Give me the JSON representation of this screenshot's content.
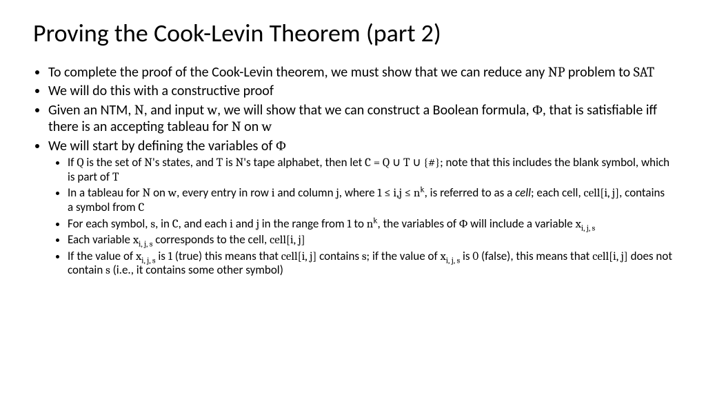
{
  "background_color": "#ffffff",
  "text_color": "#000000",
  "title_fontsize": 36,
  "body_fontsize": 20,
  "sub_fontsize": 17,
  "font_family": "Calibri",
  "math_font_family": "Cambria",
  "title": "Proving the Cook-Levin Theorem (part 2)",
  "bullets": [
    {
      "html": "To complete the proof of the Cook-Levin theorem, we must show that we can reduce any <span class='rm'>NP</span> problem to <span class='rm'>SAT</span>"
    },
    {
      "html": "We will do this with a constructive proof"
    },
    {
      "html": "Given an NTM, <span class='rm'>N</span>, and input <span class='rm'>w</span>, we will show that we can construct a Boolean formula, <span class='rm'>&#934;</span>, that is satisfiable iff there is an accepting tableau for <span class='rm'>N</span> on <span class='rm'>w</span>"
    },
    {
      "html": "We will start by defining the variables of <span class='rm'>&#934;</span>",
      "sub": [
        {
          "html": "If <span class='rm'>Q</span> is the set of <span class='rm'>N</span>'s states, and <span class='rm'>T</span> is <span class='rm'>N</span>'s tape alphabet, then let <span class='rm'>C = Q &#8746; T &#8746; {#}</span>; note that this includes the blank symbol, which is part of <span class='rm'>T</span>"
        },
        {
          "html": "In a tableau for <span class='rm'>N</span> on <span class='rm'>w</span>, every entry in row <span class='rm'>i</span> and column <span class='rm'>j</span>, where <span class='rm'>1 &#8804; i,j &#8804; n<sup>k</sup></span>, is referred to as a <em>cell</em>; each cell, <span class='rm'>cell[i, j]</span>, contains a symbol from <span class='rm'>C</span>"
        },
        {
          "html": "For each symbol, <span class='rm'>s</span>, in <span class='rm'>C</span>, and each <span class='rm'>i</span> and <span class='rm'>j</span> in the range from <span class='rm'>1</span> to <span class='rm'>n<sup>k</sup></span>, the variables of <span class='rm'>&#934;</span> will include a variable <span class='rm'>x<sub>i, j, s</sub></span>"
        },
        {
          "html": "Each variable <span class='rm'>x<sub>i, j, s</sub></span> corresponds to the cell, <span class='rm'>cell[i, j]</span>"
        },
        {
          "html": "If the value of <span class='rm'>x<sub>i, j, s</sub></span> is <span class='rm'>1</span> (true) this means that <span class='rm'>cell[i, j]</span> contains <span class='rm'>s</span>; if the value of <span class='rm'>x<sub>i, j, s</sub></span> is <span class='rm'>0</span> (false), this means that <span class='rm'>cell[i, j]</span> does not contain <span class='rm'>s</span> (i.e., it contains some other symbol)"
        }
      ]
    }
  ]
}
